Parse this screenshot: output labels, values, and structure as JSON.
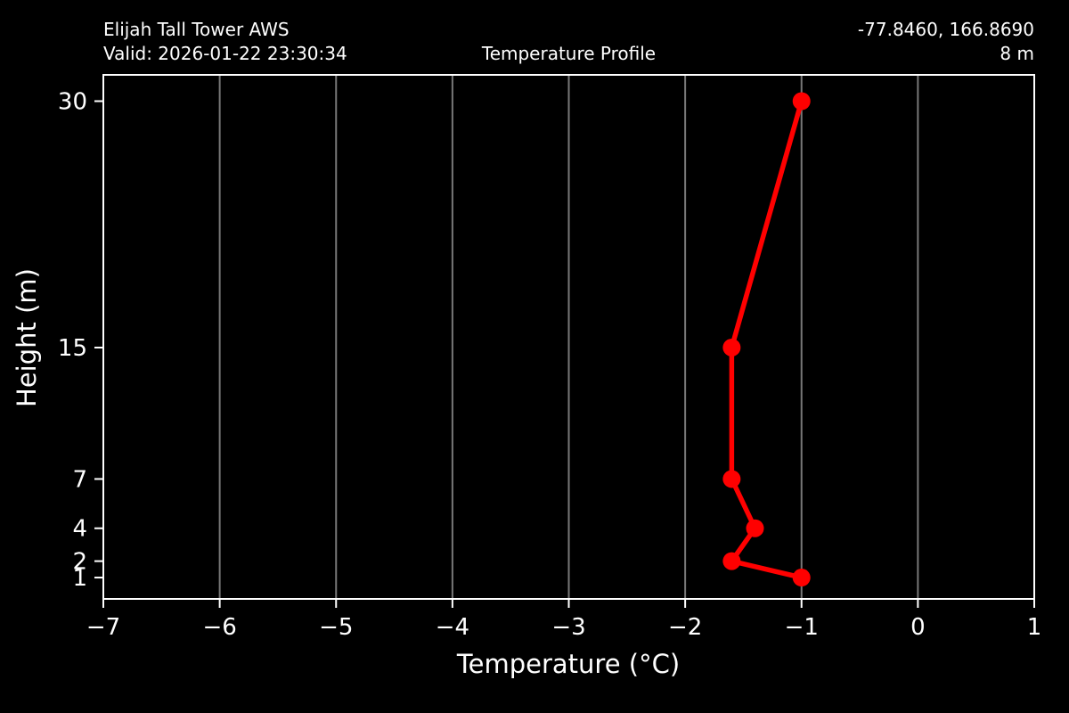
{
  "header": {
    "station": "Elijah Tall Tower AWS",
    "valid": "Valid: 2026-01-22 23:30:34",
    "title": "Temperature Profile",
    "coords": "-77.8460, 166.8690",
    "elevation": "8 m"
  },
  "chart_data": {
    "type": "line",
    "title": "Temperature Profile",
    "xlabel": "Temperature (°C)",
    "ylabel": "Height (m)",
    "xlim": [
      -7,
      1
    ],
    "ylim": [
      -0.3,
      31.6
    ],
    "xticks": [
      -7,
      -6,
      -5,
      -4,
      -3,
      -2,
      -1,
      0,
      1
    ],
    "yticks": [
      1,
      2,
      4,
      7,
      15,
      30
    ],
    "grid": "vertical-only",
    "legend": "none",
    "series": [
      {
        "name": "temperature-profile",
        "color": "#ff0000",
        "marker": "circle",
        "points": [
          {
            "height": 1,
            "temp": -1.0
          },
          {
            "height": 2,
            "temp": -1.6
          },
          {
            "height": 4,
            "temp": -1.4
          },
          {
            "height": 7,
            "temp": -1.6
          },
          {
            "height": 15,
            "temp": -1.6
          },
          {
            "height": 30,
            "temp": -1.0
          }
        ]
      }
    ],
    "colors": {
      "background": "#000000",
      "foreground": "#ffffff",
      "grid": "#787878",
      "line": "#ff0000"
    }
  }
}
